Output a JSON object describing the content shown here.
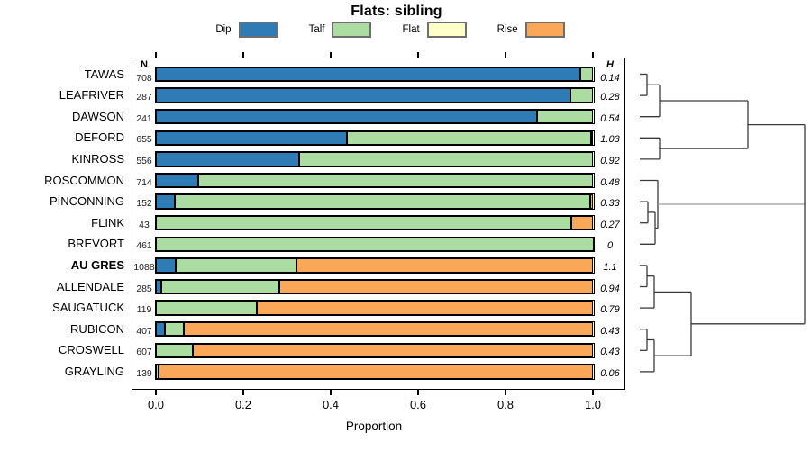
{
  "title": "Flats: sibling",
  "legend": {
    "items": [
      {
        "label": "Dip",
        "color": "#2E7BB5"
      },
      {
        "label": "Talf",
        "color": "#ABDCA2"
      },
      {
        "label": "Flat",
        "color": "#FFFFC9"
      },
      {
        "label": "Rise",
        "color": "#FAA857"
      }
    ]
  },
  "chart_data": {
    "type": "bar",
    "orientation": "horizontal-stacked",
    "title": "Flats: sibling",
    "xlabel": "Proportion",
    "x_ticks": [
      "0.0",
      "0.2",
      "0.4",
      "0.6",
      "0.8",
      "1.0"
    ],
    "xlim": [
      0,
      1
    ],
    "n_header": "N",
    "h_header": "H",
    "categories": [
      "Dip",
      "Talf",
      "Flat",
      "Rise"
    ],
    "rows": [
      {
        "label": "TAWAS",
        "n": "708",
        "h": "0.14",
        "bold": false,
        "segments": [
          {
            "category": "Dip",
            "value": 0.97
          },
          {
            "category": "Talf",
            "value": 0.03
          }
        ]
      },
      {
        "label": "LEAFRIVER",
        "n": "287",
        "h": "0.28",
        "bold": false,
        "segments": [
          {
            "category": "Dip",
            "value": 0.948
          },
          {
            "category": "Talf",
            "value": 0.052
          }
        ]
      },
      {
        "label": "DAWSON",
        "n": "241",
        "h": "0.54",
        "bold": false,
        "segments": [
          {
            "category": "Dip",
            "value": 0.872
          },
          {
            "category": "Talf",
            "value": 0.128
          }
        ]
      },
      {
        "label": "DEFORD",
        "n": "655",
        "h": "1.03",
        "bold": false,
        "segments": [
          {
            "category": "Dip",
            "value": 0.437
          },
          {
            "category": "Talf",
            "value": 0.557
          },
          {
            "category": "Rise",
            "value": 0.006
          }
        ]
      },
      {
        "label": "KINROSS",
        "n": "556",
        "h": "0.92",
        "bold": false,
        "segments": [
          {
            "category": "Dip",
            "value": 0.329
          },
          {
            "category": "Talf",
            "value": 0.671
          }
        ]
      },
      {
        "label": "ROSCOMMON",
        "n": "714",
        "h": "0.48",
        "bold": false,
        "segments": [
          {
            "category": "Dip",
            "value": 0.097
          },
          {
            "category": "Talf",
            "value": 0.903
          }
        ]
      },
      {
        "label": "PINCONNING",
        "n": "152",
        "h": "0.33",
        "bold": false,
        "segments": [
          {
            "category": "Dip",
            "value": 0.044
          },
          {
            "category": "Talf",
            "value": 0.948
          },
          {
            "category": "Rise",
            "value": 0.008
          }
        ]
      },
      {
        "label": "FLINK",
        "n": "43",
        "h": "0.27",
        "bold": false,
        "segments": [
          {
            "category": "Talf",
            "value": 0.95
          },
          {
            "category": "Rise",
            "value": 0.05
          }
        ]
      },
      {
        "label": "BREVORT",
        "n": "461",
        "h": "0",
        "bold": false,
        "segments": [
          {
            "category": "Talf",
            "value": 1.0
          }
        ]
      },
      {
        "label": "AU GRES",
        "n": "1088",
        "h": "1.1",
        "bold": true,
        "segments": [
          {
            "category": "Dip",
            "value": 0.047
          },
          {
            "category": "Talf",
            "value": 0.275
          },
          {
            "category": "Rise",
            "value": 0.678
          }
        ]
      },
      {
        "label": "ALLENDALE",
        "n": "285",
        "h": "0.94",
        "bold": false,
        "segments": [
          {
            "category": "Dip",
            "value": 0.014
          },
          {
            "category": "Talf",
            "value": 0.268
          },
          {
            "category": "Rise",
            "value": 0.718
          }
        ]
      },
      {
        "label": "SAUGATUCK",
        "n": "119",
        "h": "0.79",
        "bold": false,
        "segments": [
          {
            "category": "Talf",
            "value": 0.232
          },
          {
            "category": "Rise",
            "value": 0.768
          }
        ]
      },
      {
        "label": "RUBICON",
        "n": "407",
        "h": "0.43",
        "bold": false,
        "segments": [
          {
            "category": "Dip",
            "value": 0.021
          },
          {
            "category": "Talf",
            "value": 0.044
          },
          {
            "category": "Rise",
            "value": 0.935
          }
        ]
      },
      {
        "label": "CROSWELL",
        "n": "607",
        "h": "0.43",
        "bold": false,
        "segments": [
          {
            "category": "Talf",
            "value": 0.085
          },
          {
            "category": "Rise",
            "value": 0.915
          }
        ]
      },
      {
        "label": "GRAYLING",
        "n": "139",
        "h": "0.06",
        "bold": false,
        "segments": [
          {
            "category": "Talf",
            "value": 0.008
          },
          {
            "category": "Rise",
            "value": 0.992
          }
        ]
      }
    ],
    "dendrogram": {
      "line_color": "#3a3a3a",
      "light_line_color": "#9a9a9a",
      "segments": [
        {
          "x1": 710,
          "y1": 82.5,
          "x2": 718,
          "y2": 82.5
        },
        {
          "x1": 710,
          "y1": 106.1,
          "x2": 718,
          "y2": 106.1
        },
        {
          "x1": 718,
          "y1": 82.5,
          "x2": 718,
          "y2": 106.1
        },
        {
          "x1": 718,
          "y1": 94.3,
          "x2": 732,
          "y2": 94.3
        },
        {
          "x1": 710,
          "y1": 129.7,
          "x2": 732,
          "y2": 129.7
        },
        {
          "x1": 732,
          "y1": 94.3,
          "x2": 732,
          "y2": 129.7
        },
        {
          "x1": 732,
          "y1": 112.0,
          "x2": 830,
          "y2": 112.0
        },
        {
          "x1": 710,
          "y1": 153.3,
          "x2": 732,
          "y2": 153.3
        },
        {
          "x1": 710,
          "y1": 176.9,
          "x2": 732,
          "y2": 176.9
        },
        {
          "x1": 732,
          "y1": 153.3,
          "x2": 732,
          "y2": 176.9
        },
        {
          "x1": 732,
          "y1": 165.1,
          "x2": 830,
          "y2": 165.1
        },
        {
          "x1": 830,
          "y1": 112.0,
          "x2": 830,
          "y2": 165.1
        },
        {
          "x1": 830,
          "y1": 138.6,
          "x2": 893,
          "y2": 138.6
        },
        {
          "x1": 710,
          "y1": 200.5,
          "x2": 730,
          "y2": 200.5
        },
        {
          "x1": 710,
          "y1": 224.1,
          "x2": 719,
          "y2": 224.1
        },
        {
          "x1": 710,
          "y1": 247.7,
          "x2": 719,
          "y2": 247.7
        },
        {
          "x1": 719,
          "y1": 224.1,
          "x2": 719,
          "y2": 247.7
        },
        {
          "x1": 719,
          "y1": 235.9,
          "x2": 727,
          "y2": 235.9
        },
        {
          "x1": 710,
          "y1": 271.3,
          "x2": 727,
          "y2": 271.3
        },
        {
          "x1": 727,
          "y1": 235.9,
          "x2": 727,
          "y2": 271.3
        },
        {
          "x1": 727,
          "y1": 253.6,
          "x2": 730,
          "y2": 253.6
        },
        {
          "x1": 730,
          "y1": 200.5,
          "x2": 730,
          "y2": 253.6
        },
        {
          "x1": 730,
          "y1": 227.0,
          "x2": 893,
          "y2": 227.0,
          "light": true
        },
        {
          "x1": 710,
          "y1": 294.9,
          "x2": 718,
          "y2": 294.9
        },
        {
          "x1": 710,
          "y1": 318.5,
          "x2": 718,
          "y2": 318.5
        },
        {
          "x1": 718,
          "y1": 294.9,
          "x2": 718,
          "y2": 318.5
        },
        {
          "x1": 718,
          "y1": 306.7,
          "x2": 726,
          "y2": 306.7
        },
        {
          "x1": 710,
          "y1": 342.1,
          "x2": 726,
          "y2": 342.1
        },
        {
          "x1": 726,
          "y1": 306.7,
          "x2": 726,
          "y2": 342.1
        },
        {
          "x1": 726,
          "y1": 324.4,
          "x2": 767,
          "y2": 324.4
        },
        {
          "x1": 710,
          "y1": 365.7,
          "x2": 718,
          "y2": 365.7
        },
        {
          "x1": 710,
          "y1": 389.3,
          "x2": 718,
          "y2": 389.3
        },
        {
          "x1": 718,
          "y1": 365.7,
          "x2": 718,
          "y2": 389.3
        },
        {
          "x1": 718,
          "y1": 377.5,
          "x2": 726,
          "y2": 377.5
        },
        {
          "x1": 710,
          "y1": 412.9,
          "x2": 726,
          "y2": 412.9
        },
        {
          "x1": 726,
          "y1": 377.5,
          "x2": 726,
          "y2": 412.9
        },
        {
          "x1": 726,
          "y1": 395.2,
          "x2": 767,
          "y2": 395.2
        },
        {
          "x1": 767,
          "y1": 324.4,
          "x2": 767,
          "y2": 395.2
        },
        {
          "x1": 767,
          "y1": 359.8,
          "x2": 893,
          "y2": 359.8
        },
        {
          "x1": 893,
          "y1": 138.6,
          "x2": 893,
          "y2": 359.8
        }
      ]
    }
  }
}
